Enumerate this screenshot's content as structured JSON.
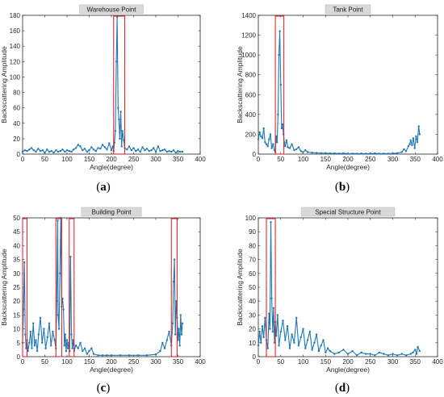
{
  "chart_data": [
    {
      "type": "line",
      "panel_label": "(a)",
      "title": "Warehouse Point",
      "xlabel": "Angle(degree)",
      "ylabel": "Backscattering Amplitude",
      "xlim": [
        0,
        400
      ],
      "ylim": [
        0,
        180
      ],
      "xticks": [
        0,
        50,
        100,
        150,
        200,
        250,
        300,
        350,
        400
      ],
      "yticks": [
        0,
        20,
        40,
        60,
        80,
        100,
        120,
        140,
        160,
        180
      ],
      "series": [
        {
          "color": "#1f77b4",
          "x": [
            0,
            5,
            10,
            15,
            20,
            25,
            30,
            35,
            40,
            45,
            50,
            55,
            60,
            65,
            70,
            75,
            80,
            85,
            90,
            95,
            100,
            105,
            110,
            115,
            120,
            125,
            130,
            135,
            140,
            145,
            150,
            155,
            160,
            165,
            170,
            175,
            180,
            185,
            190,
            195,
            200,
            203,
            205,
            207,
            209,
            211,
            213,
            215,
            217,
            219,
            221,
            223,
            225,
            228,
            230,
            235,
            240,
            245,
            250,
            255,
            260,
            265,
            270,
            275,
            280,
            285,
            290,
            295,
            300,
            305,
            310,
            315,
            320,
            325,
            330,
            335,
            340,
            345,
            350,
            355,
            360
          ],
          "y": [
            3,
            5,
            4,
            6,
            8,
            5,
            3,
            7,
            4,
            5,
            2,
            6,
            3,
            4,
            2,
            5,
            3,
            4,
            6,
            3,
            5,
            4,
            3,
            6,
            8,
            12,
            10,
            5,
            7,
            3,
            5,
            9,
            6,
            4,
            8,
            7,
            12,
            9,
            6,
            14,
            5,
            10,
            4,
            15,
            30,
            120,
            178,
            60,
            45,
            20,
            55,
            10,
            30,
            18,
            8,
            6,
            10,
            5,
            8,
            4,
            6,
            3,
            9,
            5,
            7,
            4,
            5,
            8,
            3,
            10,
            4,
            5,
            6,
            3,
            4,
            3,
            5,
            2,
            4,
            3,
            3
          ]
        }
      ],
      "highlights": [
        [
          205,
          230
        ]
      ]
    },
    {
      "type": "line",
      "panel_label": "(b)",
      "title": "Tank Point",
      "xlabel": "Angle(degree)",
      "ylabel": "Backscattering Amplitude",
      "xlim": [
        0,
        400
      ],
      "ylim": [
        0,
        1400
      ],
      "xticks": [
        0,
        50,
        100,
        150,
        200,
        250,
        300,
        350,
        400
      ],
      "yticks": [
        0,
        200,
        400,
        600,
        800,
        1000,
        1200,
        1400
      ],
      "series": [
        {
          "color": "#1f77b4",
          "x": [
            0,
            3,
            6,
            9,
            12,
            15,
            18,
            21,
            24,
            27,
            30,
            33,
            36,
            38,
            40,
            42,
            44,
            46,
            48,
            50,
            52,
            54,
            56,
            58,
            60,
            63,
            66,
            70,
            75,
            80,
            85,
            90,
            95,
            100,
            105,
            110,
            120,
            130,
            140,
            150,
            160,
            170,
            180,
            190,
            200,
            210,
            220,
            230,
            240,
            250,
            260,
            270,
            280,
            290,
            300,
            310,
            320,
            325,
            330,
            335,
            338,
            340,
            343,
            346,
            349,
            352,
            355,
            358,
            360
          ],
          "y": [
            150,
            220,
            180,
            160,
            260,
            120,
            100,
            80,
            150,
            200,
            60,
            100,
            40,
            20,
            180,
            120,
            400,
            1000,
            1240,
            700,
            260,
            300,
            200,
            120,
            80,
            140,
            70,
            60,
            100,
            40,
            50,
            70,
            30,
            20,
            40,
            20,
            15,
            12,
            10,
            10,
            8,
            8,
            6,
            8,
            5,
            6,
            5,
            6,
            5,
            6,
            8,
            5,
            6,
            5,
            8,
            10,
            20,
            50,
            30,
            80,
            100,
            140,
            90,
            160,
            60,
            180,
            120,
            280,
            200
          ]
        }
      ],
      "highlights": [
        [
          38,
          57
        ]
      ]
    },
    {
      "type": "line",
      "panel_label": "(c)",
      "title": "Building Point",
      "xlabel": "Angle(degree)",
      "ylabel": "Backscattering Amplitude",
      "xlim": [
        0,
        400
      ],
      "ylim": [
        0,
        50
      ],
      "xticks": [
        0,
        50,
        100,
        150,
        200,
        250,
        300,
        350,
        400
      ],
      "yticks": [
        0,
        5,
        10,
        15,
        20,
        25,
        30,
        35,
        40,
        45,
        50
      ],
      "series": [
        {
          "color": "#1f77b4",
          "x": [
            0,
            2,
            4,
            6,
            8,
            10,
            12,
            15,
            18,
            21,
            24,
            27,
            30,
            33,
            36,
            40,
            44,
            48,
            52,
            56,
            60,
            64,
            68,
            72,
            75,
            77,
            79,
            80,
            82,
            84,
            86,
            88,
            90,
            92,
            94,
            96,
            98,
            100,
            102,
            104,
            106,
            108,
            110,
            112,
            114,
            116,
            120,
            125,
            130,
            135,
            140,
            145,
            150,
            155,
            160,
            170,
            180,
            190,
            200,
            220,
            240,
            260,
            280,
            300,
            310,
            315,
            320,
            325,
            330,
            335,
            338,
            340,
            342,
            344,
            346,
            348,
            350,
            352,
            354,
            356,
            358,
            360
          ],
          "y": [
            5,
            17,
            34,
            8,
            3,
            6,
            2,
            5,
            9,
            3,
            12,
            4,
            6,
            2,
            8,
            14,
            5,
            10,
            3,
            7,
            12,
            4,
            9,
            6,
            3,
            20,
            49,
            15,
            10,
            30,
            50,
            18,
            21,
            17,
            4,
            8,
            2,
            6,
            3,
            5,
            2,
            36,
            8,
            3,
            6,
            2,
            4,
            3,
            5,
            2,
            3,
            1,
            2,
            3,
            1,
            0.5,
            0.5,
            0.5,
            0.5,
            0.5,
            0.5,
            0.5,
            0.5,
            0.8,
            2,
            5,
            3,
            6,
            9,
            4,
            12,
            27,
            35,
            8,
            20,
            14,
            6,
            10,
            4,
            15,
            8,
            12
          ]
        }
      ],
      "highlights": [
        [
          0,
          10
        ],
        [
          75,
          88
        ],
        [
          105,
          116
        ],
        [
          335,
          348
        ]
      ]
    },
    {
      "type": "line",
      "panel_label": "(d)",
      "title": "Special Structure Point",
      "xlabel": "Angle(degree)",
      "ylabel": "Backscattering Amplitude",
      "xlim": [
        0,
        400
      ],
      "ylim": [
        0,
        100
      ],
      "xticks": [
        0,
        50,
        100,
        150,
        200,
        250,
        300,
        350,
        400
      ],
      "yticks": [
        0,
        10,
        20,
        30,
        40,
        50,
        60,
        70,
        80,
        90,
        100
      ],
      "series": [
        {
          "color": "#1f77b4",
          "x": [
            0,
            3,
            6,
            9,
            12,
            15,
            18,
            21,
            24,
            26,
            28,
            30,
            32,
            34,
            36,
            38,
            40,
            43,
            46,
            50,
            55,
            60,
            65,
            70,
            75,
            80,
            85,
            90,
            95,
            100,
            105,
            110,
            115,
            120,
            125,
            130,
            135,
            140,
            145,
            150,
            155,
            160,
            170,
            180,
            190,
            200,
            210,
            220,
            230,
            240,
            250,
            260,
            270,
            280,
            290,
            300,
            310,
            320,
            330,
            340,
            345,
            350,
            353,
            356,
            360
          ],
          "y": [
            8,
            18,
            10,
            22,
            14,
            28,
            12,
            6,
            31,
            20,
            97,
            42,
            18,
            35,
            10,
            25,
            15,
            30,
            8,
            18,
            26,
            12,
            22,
            6,
            16,
            10,
            28,
            8,
            14,
            20,
            6,
            12,
            18,
            5,
            10,
            16,
            4,
            8,
            12,
            3,
            6,
            4,
            2,
            3,
            5,
            2,
            4,
            1,
            3,
            2,
            2,
            1,
            3,
            2,
            1,
            2,
            1,
            2,
            1,
            2,
            3,
            5,
            2,
            7,
            4
          ]
        }
      ],
      "highlights": [
        [
          18,
          38
        ]
      ]
    }
  ]
}
